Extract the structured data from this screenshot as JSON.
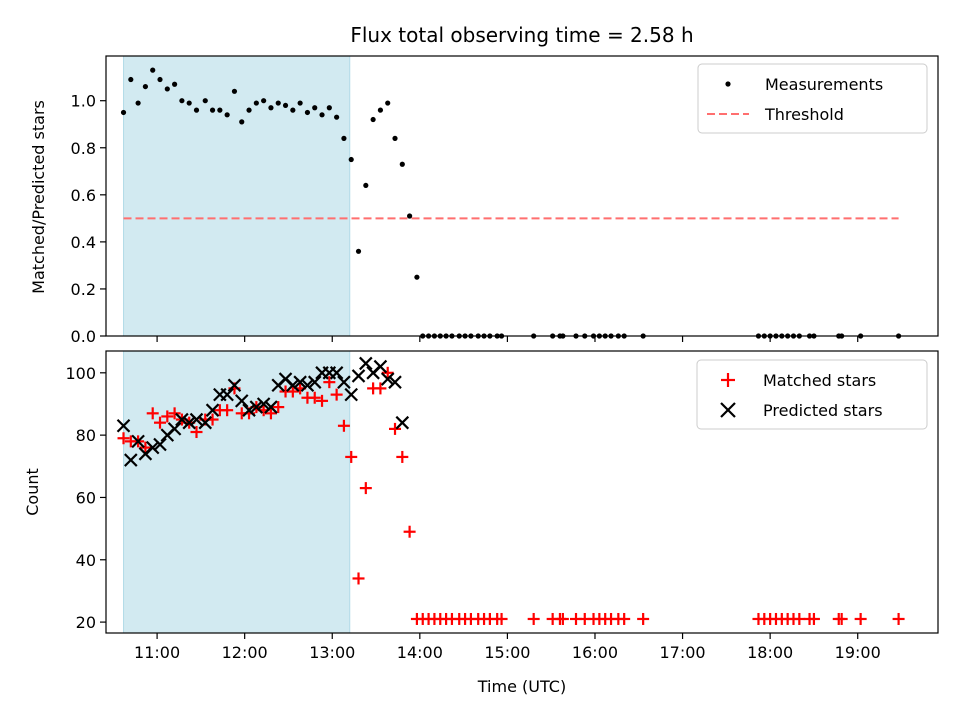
{
  "figure_title": "Flux total observing time = 2.58 h",
  "colors": {
    "shade": "#add8e6",
    "measurements": "#000000",
    "threshold": "#ff6f6f",
    "matched": "#ff0000",
    "predicted": "#000000"
  },
  "chart_data": [
    {
      "type": "scatter",
      "panel": "top",
      "title": "Flux total observing time = 2.58 h",
      "xlabel": "",
      "ylabel": "Matched/Predicted stars",
      "xlim": [
        "10:25",
        "19:55"
      ],
      "ylim": [
        0,
        1.19
      ],
      "yticks": [
        0.0,
        0.2,
        0.4,
        0.6,
        0.8,
        1.0
      ],
      "ytick_labels": [
        "0.0",
        "0.2",
        "0.4",
        "0.6",
        "0.8",
        "1.0"
      ],
      "legend_position": "top-right",
      "shaded_interval": [
        "10:37",
        "13:12"
      ],
      "threshold": {
        "name": "Threshold",
        "value": 0.5,
        "x": [
          "10:37",
          "19:28"
        ]
      },
      "series": [
        {
          "name": "Measurements",
          "points": [
            [
              "10:37",
              0.95
            ],
            [
              "10:42",
              1.09
            ],
            [
              "10:47",
              0.99
            ],
            [
              "10:52",
              1.06
            ],
            [
              "10:57",
              1.13
            ],
            [
              "11:02",
              1.09
            ],
            [
              "11:07",
              1.05
            ],
            [
              "11:12",
              1.07
            ],
            [
              "11:17",
              1.0
            ],
            [
              "11:22",
              0.99
            ],
            [
              "11:27",
              0.96
            ],
            [
              "11:33",
              1.0
            ],
            [
              "11:38",
              0.96
            ],
            [
              "11:43",
              0.96
            ],
            [
              "11:48",
              0.94
            ],
            [
              "11:53",
              1.04
            ],
            [
              "11:58",
              0.91
            ],
            [
              "12:03",
              0.96
            ],
            [
              "12:08",
              0.99
            ],
            [
              "12:13",
              1.0
            ],
            [
              "12:18",
              0.97
            ],
            [
              "12:23",
              0.99
            ],
            [
              "12:28",
              0.98
            ],
            [
              "12:33",
              0.96
            ],
            [
              "12:38",
              0.99
            ],
            [
              "12:43",
              0.95
            ],
            [
              "12:48",
              0.97
            ],
            [
              "12:53",
              0.94
            ],
            [
              "12:58",
              0.97
            ],
            [
              "13:03",
              0.93
            ],
            [
              "13:08",
              0.84
            ],
            [
              "13:13",
              0.75
            ],
            [
              "13:18",
              0.36
            ],
            [
              "13:23",
              0.64
            ],
            [
              "13:28",
              0.92
            ],
            [
              "13:33",
              0.96
            ],
            [
              "13:38",
              0.99
            ],
            [
              "13:43",
              0.84
            ],
            [
              "13:48",
              0.73
            ],
            [
              "13:53",
              0.51
            ],
            [
              "13:58",
              0.25
            ],
            [
              "14:02",
              0
            ],
            [
              "14:06",
              0
            ],
            [
              "14:10",
              0
            ],
            [
              "14:14",
              0
            ],
            [
              "14:18",
              0
            ],
            [
              "14:22",
              0
            ],
            [
              "14:27",
              0
            ],
            [
              "14:31",
              0
            ],
            [
              "14:35",
              0
            ],
            [
              "14:40",
              0
            ],
            [
              "14:44",
              0
            ],
            [
              "14:48",
              0
            ],
            [
              "14:53",
              0
            ],
            [
              "14:56",
              0
            ],
            [
              "15:18",
              0
            ],
            [
              "15:31",
              0
            ],
            [
              "15:36",
              0
            ],
            [
              "15:38",
              0
            ],
            [
              "15:47",
              0
            ],
            [
              "15:53",
              0
            ],
            [
              "15:59",
              0
            ],
            [
              "16:03",
              0
            ],
            [
              "16:07",
              0
            ],
            [
              "16:11",
              0
            ],
            [
              "16:16",
              0
            ],
            [
              "16:20",
              0
            ],
            [
              "16:33",
              0
            ],
            [
              "17:52",
              0
            ],
            [
              "17:56",
              0
            ],
            [
              "18:00",
              0
            ],
            [
              "18:04",
              0
            ],
            [
              "18:08",
              0
            ],
            [
              "18:12",
              0
            ],
            [
              "18:16",
              0
            ],
            [
              "18:20",
              0
            ],
            [
              "18:27",
              0
            ],
            [
              "18:30",
              0
            ],
            [
              "18:47",
              0
            ],
            [
              "18:49",
              0
            ],
            [
              "19:02",
              0
            ],
            [
              "19:28",
              0
            ]
          ]
        }
      ],
      "legend": [
        {
          "label": "Measurements",
          "marker": "dot"
        },
        {
          "label": "Threshold",
          "marker": "dash"
        }
      ]
    },
    {
      "type": "scatter",
      "panel": "bottom",
      "title": "",
      "xlabel": "Time (UTC)",
      "ylabel": "Count",
      "xlim": [
        "10:25",
        "19:55"
      ],
      "ylim": [
        16.5,
        107
      ],
      "xticks": [
        "11:00",
        "12:00",
        "13:00",
        "14:00",
        "15:00",
        "16:00",
        "17:00",
        "18:00",
        "19:00"
      ],
      "yticks": [
        20,
        40,
        60,
        80,
        100
      ],
      "ytick_labels": [
        "20",
        "40",
        "60",
        "80",
        "100"
      ],
      "legend_position": "top-right",
      "shaded_interval": [
        "10:37",
        "13:12"
      ],
      "series": [
        {
          "name": "Matched stars",
          "marker": "plus",
          "points": [
            [
              "10:37",
              79
            ],
            [
              "10:42",
              78
            ],
            [
              "10:47",
              78
            ],
            [
              "10:52",
              76
            ],
            [
              "10:57",
              87
            ],
            [
              "11:02",
              84
            ],
            [
              "11:07",
              86
            ],
            [
              "11:12",
              87
            ],
            [
              "11:17",
              85
            ],
            [
              "11:22",
              84
            ],
            [
              "11:27",
              81
            ],
            [
              "11:33",
              85
            ],
            [
              "11:38",
              85
            ],
            [
              "11:43",
              88
            ],
            [
              "11:48",
              88
            ],
            [
              "11:53",
              95
            ],
            [
              "11:58",
              87
            ],
            [
              "12:03",
              87
            ],
            [
              "12:08",
              89
            ],
            [
              "12:13",
              88
            ],
            [
              "12:18",
              87
            ],
            [
              "12:23",
              89
            ],
            [
              "12:28",
              94
            ],
            [
              "12:33",
              94
            ],
            [
              "12:38",
              95
            ],
            [
              "12:43",
              92
            ],
            [
              "12:48",
              92
            ],
            [
              "12:53",
              91
            ],
            [
              "12:58",
              97
            ],
            [
              "13:03",
              93
            ],
            [
              "13:08",
              83
            ],
            [
              "13:13",
              73
            ],
            [
              "13:18",
              34
            ],
            [
              "13:23",
              63
            ],
            [
              "13:28",
              95
            ],
            [
              "13:33",
              95
            ],
            [
              "13:38",
              100
            ],
            [
              "13:43",
              82
            ],
            [
              "13:48",
              73
            ],
            [
              "13:53",
              49
            ],
            [
              "13:58",
              21
            ],
            [
              "14:02",
              21
            ],
            [
              "14:06",
              21
            ],
            [
              "14:10",
              21
            ],
            [
              "14:14",
              21
            ],
            [
              "14:18",
              21
            ],
            [
              "14:22",
              21
            ],
            [
              "14:27",
              21
            ],
            [
              "14:31",
              21
            ],
            [
              "14:35",
              21
            ],
            [
              "14:40",
              21
            ],
            [
              "14:44",
              21
            ],
            [
              "14:48",
              21
            ],
            [
              "14:53",
              21
            ],
            [
              "14:56",
              21
            ],
            [
              "15:18",
              21
            ],
            [
              "15:31",
              21
            ],
            [
              "15:36",
              21
            ],
            [
              "15:38",
              21
            ],
            [
              "15:47",
              21
            ],
            [
              "15:53",
              21
            ],
            [
              "15:59",
              21
            ],
            [
              "16:03",
              21
            ],
            [
              "16:07",
              21
            ],
            [
              "16:11",
              21
            ],
            [
              "16:16",
              21
            ],
            [
              "16:20",
              21
            ],
            [
              "16:33",
              21
            ],
            [
              "17:52",
              21
            ],
            [
              "17:56",
              21
            ],
            [
              "18:00",
              21
            ],
            [
              "18:04",
              21
            ],
            [
              "18:08",
              21
            ],
            [
              "18:12",
              21
            ],
            [
              "18:16",
              21
            ],
            [
              "18:20",
              21
            ],
            [
              "18:27",
              21
            ],
            [
              "18:30",
              21
            ],
            [
              "18:47",
              21
            ],
            [
              "18:49",
              21
            ],
            [
              "19:02",
              21
            ],
            [
              "19:28",
              21
            ]
          ]
        },
        {
          "name": "Predicted stars",
          "marker": "x",
          "points": [
            [
              "10:37",
              83
            ],
            [
              "10:42",
              72
            ],
            [
              "10:47",
              78
            ],
            [
              "10:52",
              74
            ],
            [
              "10:57",
              76
            ],
            [
              "11:02",
              77
            ],
            [
              "11:07",
              80
            ],
            [
              "11:12",
              82
            ],
            [
              "11:17",
              85
            ],
            [
              "11:22",
              84
            ],
            [
              "11:27",
              85
            ],
            [
              "11:33",
              84
            ],
            [
              "11:38",
              88
            ],
            [
              "11:43",
              93
            ],
            [
              "11:48",
              93
            ],
            [
              "11:53",
              96
            ],
            [
              "11:58",
              91
            ],
            [
              "12:03",
              88
            ],
            [
              "12:08",
              89
            ],
            [
              "12:13",
              90
            ],
            [
              "12:18",
              89
            ],
            [
              "12:23",
              96
            ],
            [
              "12:28",
              98
            ],
            [
              "12:33",
              96
            ],
            [
              "12:38",
              97
            ],
            [
              "12:43",
              96
            ],
            [
              "12:48",
              97
            ],
            [
              "12:53",
              100
            ],
            [
              "12:58",
              100
            ],
            [
              "13:03",
              100
            ],
            [
              "13:08",
              97
            ],
            [
              "13:13",
              93
            ],
            [
              "13:18",
              99
            ],
            [
              "13:23",
              103
            ],
            [
              "13:28",
              100
            ],
            [
              "13:33",
              102
            ],
            [
              "13:38",
              98
            ],
            [
              "13:43",
              97
            ],
            [
              "13:48",
              84
            ]
          ]
        }
      ],
      "legend": [
        {
          "label": "Matched stars",
          "marker": "plus"
        },
        {
          "label": "Predicted stars",
          "marker": "x"
        }
      ]
    }
  ]
}
